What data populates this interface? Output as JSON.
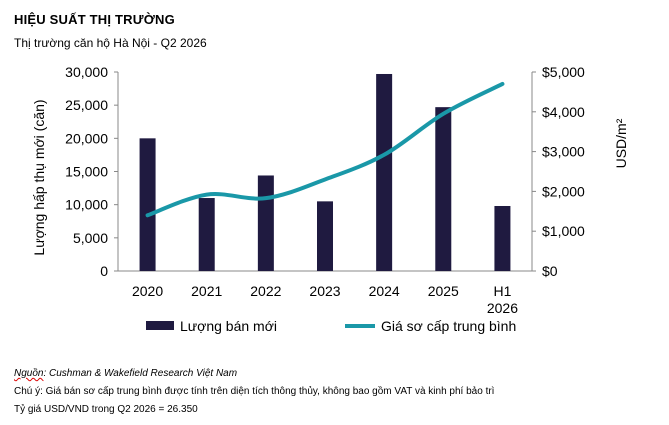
{
  "header": {
    "title": "HIỆU SUẤT THỊ TRƯỜNG",
    "subtitle": "Thị trường căn hộ Hà Nội - Q2 2026"
  },
  "chart_data": {
    "type": "bar",
    "categories": [
      "2020",
      "2021",
      "2022",
      "2023",
      "2024",
      "2025",
      "H1\n2026"
    ],
    "series": [
      {
        "name": "Lượng bán mới",
        "type": "bar",
        "axis": "left",
        "color": "#1f1a40",
        "values": [
          20000,
          11000,
          14400,
          10500,
          29700,
          24700,
          9800
        ]
      },
      {
        "name": "Giá sơ cấp trung bình",
        "type": "line",
        "axis": "right",
        "color": "#1a98a8",
        "values": [
          1400,
          1920,
          1830,
          2300,
          2920,
          3950,
          4700
        ]
      }
    ],
    "ylabel": "Lượng hấp thụ mới (căn)",
    "ylim": [
      0,
      30000
    ],
    "yticks": [
      0,
      5000,
      10000,
      15000,
      20000,
      25000,
      30000
    ],
    "ytick_labels": [
      "0",
      "5,000",
      "10,000",
      "15,000",
      "20,000",
      "25,000",
      "30,000"
    ],
    "y2label": "USD/m²",
    "y2lim": [
      0,
      5000
    ],
    "y2ticks": [
      0,
      1000,
      2000,
      3000,
      4000,
      5000
    ],
    "y2tick_labels": [
      "$0",
      "$1,000",
      "$2,000",
      "$3,000",
      "$4,000",
      "$5,000"
    ],
    "grid": false,
    "legend": "bottom"
  },
  "notes": {
    "source_label": "Nguồn",
    "source_text": ": Cushman & Wakefield Research Việt Nam",
    "note_1": "Chú ý: Giá bán sơ cấp trung bình được tính trên diện tích thông thủy, không bao gồm VAT và kinh phí bảo trì",
    "note_2": "Tỷ giá USD/VND trong Q2 2026 = 26.350"
  }
}
